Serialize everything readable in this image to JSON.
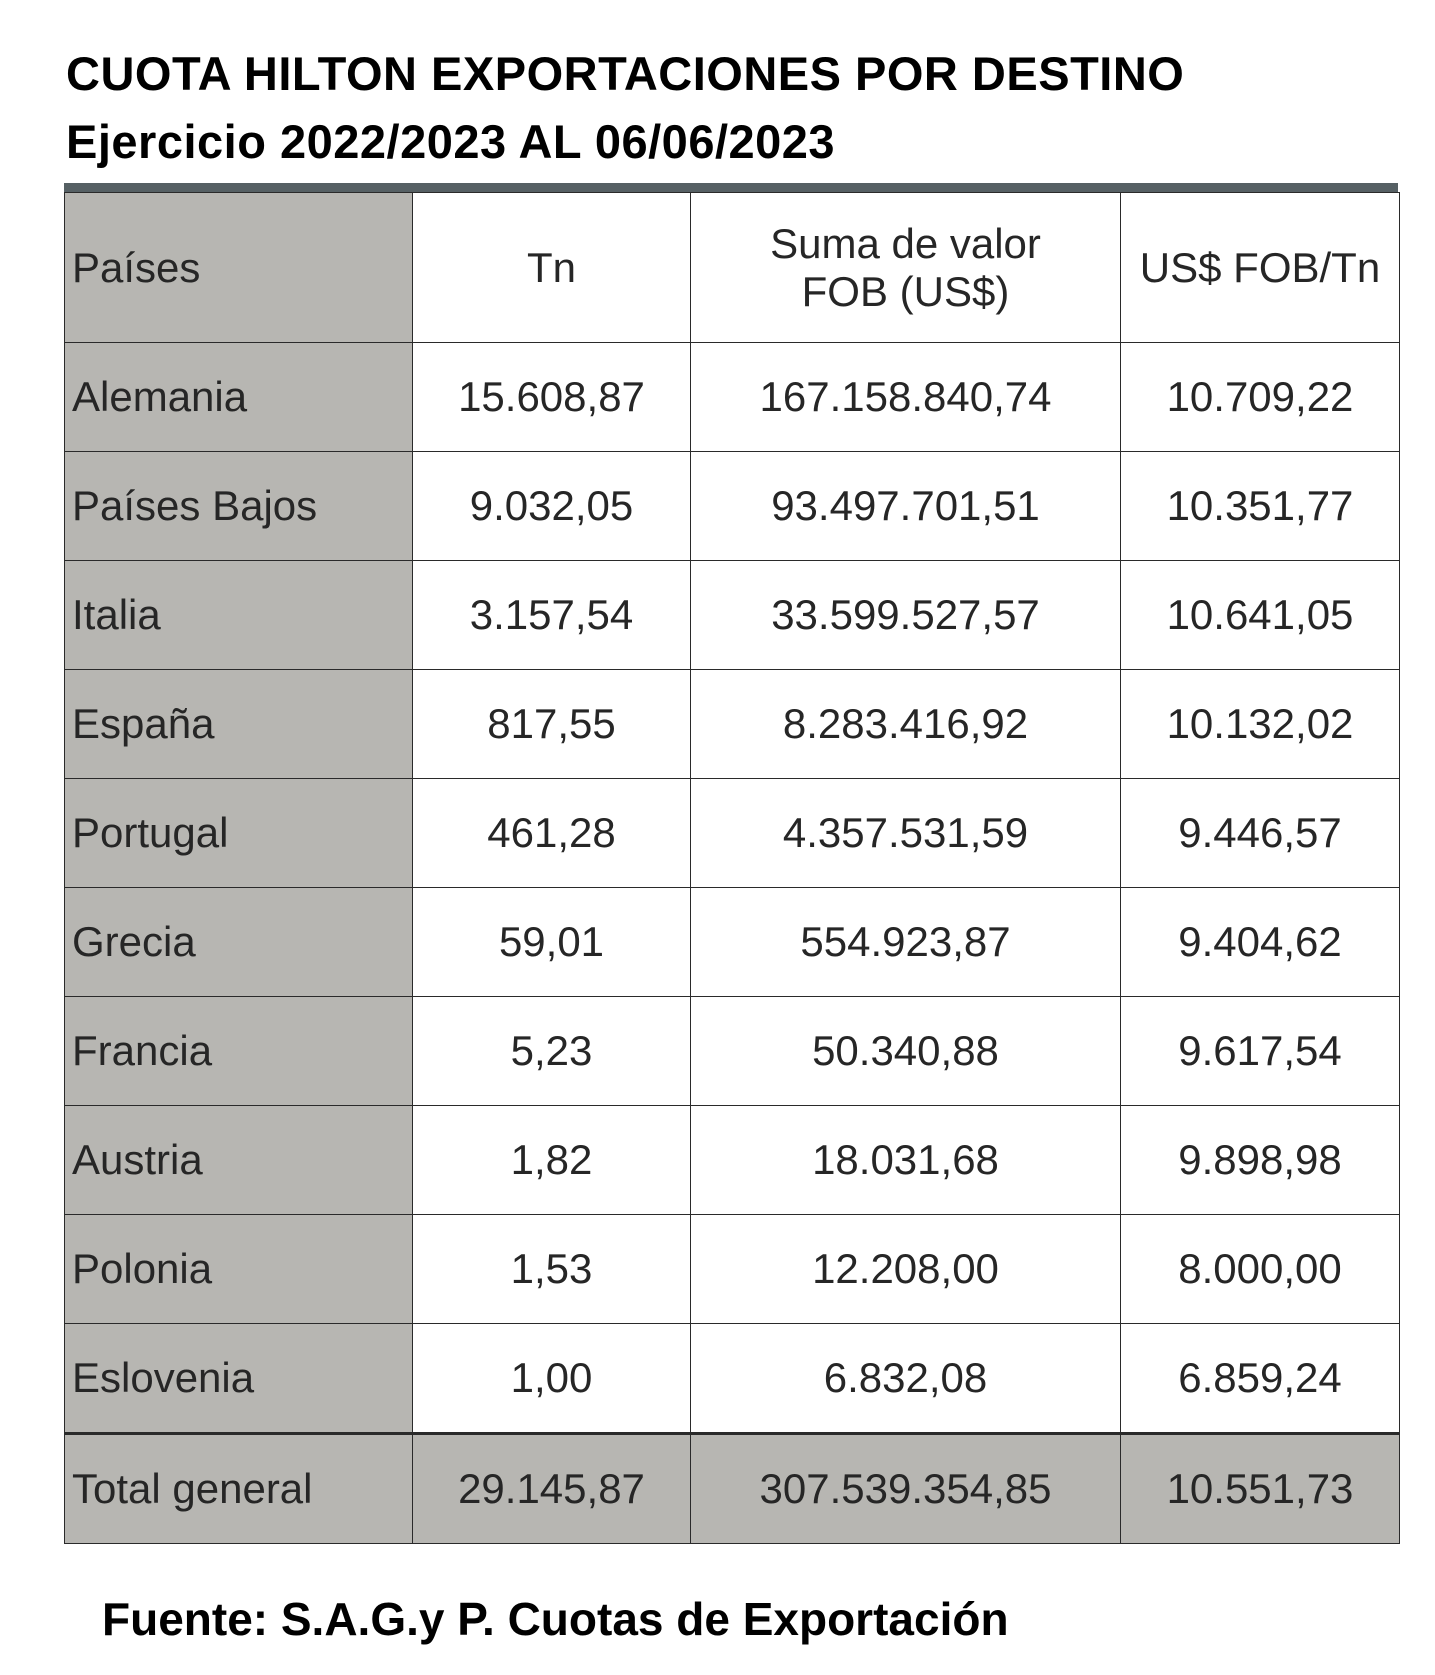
{
  "title": "CUOTA HILTON  EXPORTACIONES POR DESTINO",
  "subtitle": "Ejercicio 2022/2023 AL 06/06/2023",
  "table": {
    "headers": [
      "Países",
      "Tn",
      "Suma de valor FOB (US$)",
      "US$ FOB/Tn"
    ],
    "rows": [
      [
        "Alemania",
        "15.608,87",
        "167.158.840,74",
        "10.709,22"
      ],
      [
        "Países Bajos",
        "9.032,05",
        "93.497.701,51",
        "10.351,77"
      ],
      [
        "Italia",
        "3.157,54",
        "33.599.527,57",
        "10.641,05"
      ],
      [
        "España",
        "817,55",
        "8.283.416,92",
        "10.132,02"
      ],
      [
        "Portugal",
        "461,28",
        "4.357.531,59",
        "9.446,57"
      ],
      [
        "Grecia",
        "59,01",
        "554.923,87",
        "9.404,62"
      ],
      [
        "Francia",
        "5,23",
        "50.340,88",
        "9.617,54"
      ],
      [
        "Austria",
        "1,82",
        "18.031,68",
        "9.898,98"
      ],
      [
        "Polonia",
        "1,53",
        "12.208,00",
        "8.000,00"
      ],
      [
        "Eslovenia",
        "1,00",
        "6.832,08",
        "6.859,24"
      ]
    ],
    "total": [
      "Total general",
      "29.145,87",
      "307.539.354,85",
      "10.551,73"
    ]
  },
  "footer": "Fuente: S.A.G.y P. Cuotas de Exportación",
  "colors": {
    "label_column": "#b7b6b2",
    "header_band": "#566064"
  }
}
